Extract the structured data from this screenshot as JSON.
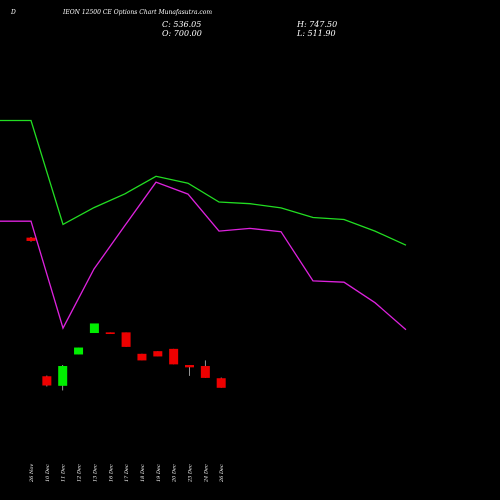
{
  "header": {
    "symbol": "D",
    "title": "IEON 12500 CE Options Chart Munafasutra.com",
    "close_label": "C: 536.05",
    "open_label": "O: 700.00",
    "high_label": "H: 747.50",
    "low_label": "L: 511.90"
  },
  "chart_data": {
    "type": "candlestick",
    "x_labels": [
      "26 Nov",
      "10 Dec",
      "11 Dec",
      "12 Dec",
      "13 Dec",
      "16 Dec",
      "17 Dec",
      "18 Dec",
      "19 Dec",
      "20 Dec",
      "23 Dec",
      "24 Dec",
      "26 Dec"
    ],
    "candles": [
      {
        "open": 0.795,
        "close": 0.785,
        "high": 0.797,
        "low": 0.783
      },
      {
        "open": 0.375,
        "close": 0.347,
        "high": 0.377,
        "low": 0.344
      },
      {
        "open": 0.346,
        "close": 0.406,
        "high": 0.409,
        "low": 0.332
      },
      {
        "open": 0.441,
        "close": 0.462,
        "high": 0.462,
        "low": 0.441
      },
      {
        "open": 0.506,
        "close": 0.535,
        "high": 0.535,
        "low": 0.506
      },
      {
        "open": 0.508,
        "close": 0.503,
        "high": 0.508,
        "low": 0.503
      },
      {
        "open": 0.508,
        "close": 0.464,
        "high": 0.508,
        "low": 0.464
      },
      {
        "open": 0.443,
        "close": 0.423,
        "high": 0.443,
        "low": 0.423
      },
      {
        "open": 0.451,
        "close": 0.435,
        "high": 0.451,
        "low": 0.435
      },
      {
        "open": 0.458,
        "close": 0.411,
        "high": 0.458,
        "low": 0.411
      },
      {
        "open": 0.409,
        "close": 0.402,
        "high": 0.409,
        "low": 0.376
      },
      {
        "open": 0.406,
        "close": 0.37,
        "high": 0.423,
        "low": 0.37
      },
      {
        "open": 0.369,
        "close": 0.34,
        "high": 0.371,
        "low": 0.34
      }
    ],
    "ma_series": [
      {
        "color": "#22dd22",
        "values": [
          1.15,
          1.15,
          0.835,
          0.886,
          0.928,
          0.981,
          0.96,
          0.903,
          0.898,
          0.885,
          0.856,
          0.85,
          0.815,
          0.772
        ]
      },
      {
        "color": "#dd22dd",
        "values": [
          0.845,
          0.845,
          0.521,
          0.7,
          0.832,
          0.963,
          0.927,
          0.815,
          0.823,
          0.813,
          0.664,
          0.66,
          0.598,
          0.516
        ]
      }
    ],
    "colors": {
      "up": "#00ee00",
      "down": "#ee0000",
      "background": "#000000"
    }
  }
}
